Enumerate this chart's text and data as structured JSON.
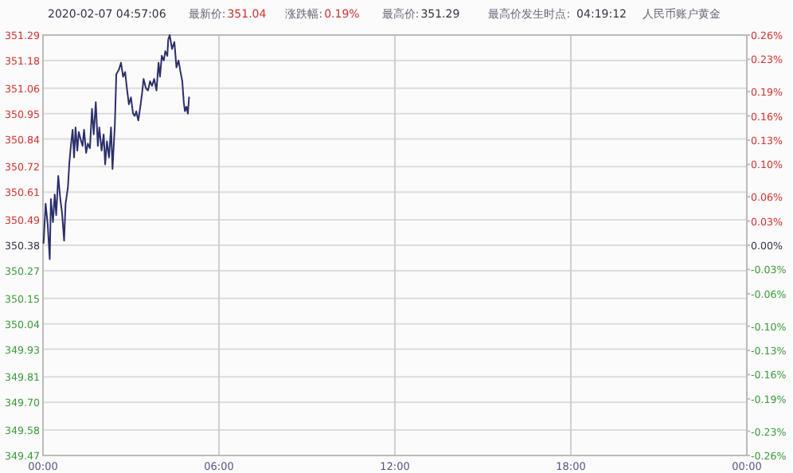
{
  "chart_data": {
    "type": "line",
    "annotations": [
      "2020-02-07 04:57:06",
      "最新价:",
      "351.04",
      "涨跌幅:",
      "0.19%",
      "最高价:",
      "351.29",
      "最高价发生时点:",
      "04:19:12",
      "人民币账户黄金"
    ],
    "x": [
      0.02,
      0.09,
      0.16,
      0.23,
      0.27,
      0.34,
      0.4,
      0.45,
      0.52,
      0.59,
      0.65,
      0.72,
      0.77,
      0.85,
      0.9,
      0.95,
      1.01,
      1.06,
      1.11,
      1.17,
      1.22,
      1.28,
      1.35,
      1.4,
      1.47,
      1.53,
      1.6,
      1.67,
      1.73,
      1.8,
      1.87,
      1.92,
      2.0,
      2.07,
      2.12,
      2.18,
      2.25,
      2.32,
      2.37,
      2.45,
      2.5,
      2.59,
      2.66,
      2.73,
      2.8,
      2.86,
      2.93,
      3.0,
      3.07,
      3.13,
      3.18,
      3.25,
      3.33,
      3.38,
      3.43,
      3.51,
      3.58,
      3.65,
      3.72,
      3.79,
      3.87,
      3.94,
      3.99,
      4.05,
      4.12,
      4.17,
      4.24,
      4.27,
      4.32,
      4.4,
      4.48,
      4.55,
      4.62,
      4.69,
      4.75,
      4.8,
      4.84,
      4.89,
      4.94,
      4.98
    ],
    "series": [
      {
        "color": "#2b2f6b",
        "values": [
          350.39,
          350.56,
          350.47,
          350.32,
          350.58,
          350.48,
          350.6,
          350.51,
          350.68,
          350.58,
          350.52,
          350.4,
          350.56,
          350.63,
          350.74,
          350.81,
          350.88,
          350.76,
          350.89,
          350.79,
          350.87,
          350.84,
          350.81,
          350.88,
          350.78,
          350.82,
          350.8,
          350.97,
          350.86,
          351.0,
          350.81,
          350.89,
          350.79,
          350.86,
          350.73,
          350.83,
          350.76,
          350.89,
          350.71,
          350.9,
          351.12,
          351.14,
          351.17,
          351.11,
          351.13,
          351.06,
          350.99,
          351.02,
          350.95,
          350.94,
          350.96,
          350.92,
          350.99,
          351.04,
          351.1,
          351.06,
          351.05,
          351.09,
          351.07,
          351.1,
          351.05,
          351.17,
          351.11,
          351.2,
          351.18,
          351.22,
          351.2,
          351.27,
          351.29,
          351.23,
          351.26,
          351.15,
          351.18,
          351.13,
          351.09,
          351.0,
          350.96,
          350.98,
          350.95,
          351.02
        ]
      }
    ],
    "xlim": [
      0,
      24
    ],
    "xticks": [
      {
        "value": 0,
        "label": "00:00"
      },
      {
        "value": 6,
        "label": "06:00"
      },
      {
        "value": 12,
        "label": "12:00"
      },
      {
        "value": 18,
        "label": "18:00"
      },
      {
        "value": 24,
        "label": "00:00"
      }
    ],
    "ylim": [
      349.47,
      351.29
    ],
    "yticks": [
      349.47,
      349.58,
      {
        "value": 349.7,
        "label": "349.70"
      },
      349.81,
      349.93,
      350.04,
      350.15,
      350.27,
      350.38,
      350.49,
      350.61,
      350.72,
      350.84,
      350.95,
      351.06,
      351.18,
      351.29
    ],
    "y2lim": [
      -0.26,
      0.26
    ],
    "y2ticks": [
      {
        "value": -0.26,
        "label": "-0.26%"
      },
      {
        "value": -0.23,
        "label": "-0.23%"
      },
      {
        "value": -0.19,
        "label": "-0.19%"
      },
      {
        "value": -0.16,
        "label": "-0.16%"
      },
      {
        "value": -0.13,
        "label": "-0.13%"
      },
      {
        "value": -0.1,
        "label": "-0.10%"
      },
      {
        "value": -0.06,
        "label": "-0.06%"
      },
      {
        "value": -0.03,
        "label": "-0.03%"
      },
      {
        "value": 0,
        "label": "0.00%"
      },
      {
        "value": 0.03,
        "label": "0.03%"
      },
      {
        "value": 0.06,
        "label": "0.06%"
      },
      {
        "value": 0.1,
        "label": "0.10%"
      },
      {
        "value": 0.13,
        "label": "0.13%"
      },
      {
        "value": 0.16,
        "label": "0.16%"
      },
      {
        "value": 0.19,
        "label": "0.19%"
      },
      {
        "value": 0.23,
        "label": "0.23%"
      },
      {
        "value": 0.26,
        "label": "0.26%"
      }
    ],
    "grid": true,
    "marker": "none",
    "line_style": "solid"
  }
}
